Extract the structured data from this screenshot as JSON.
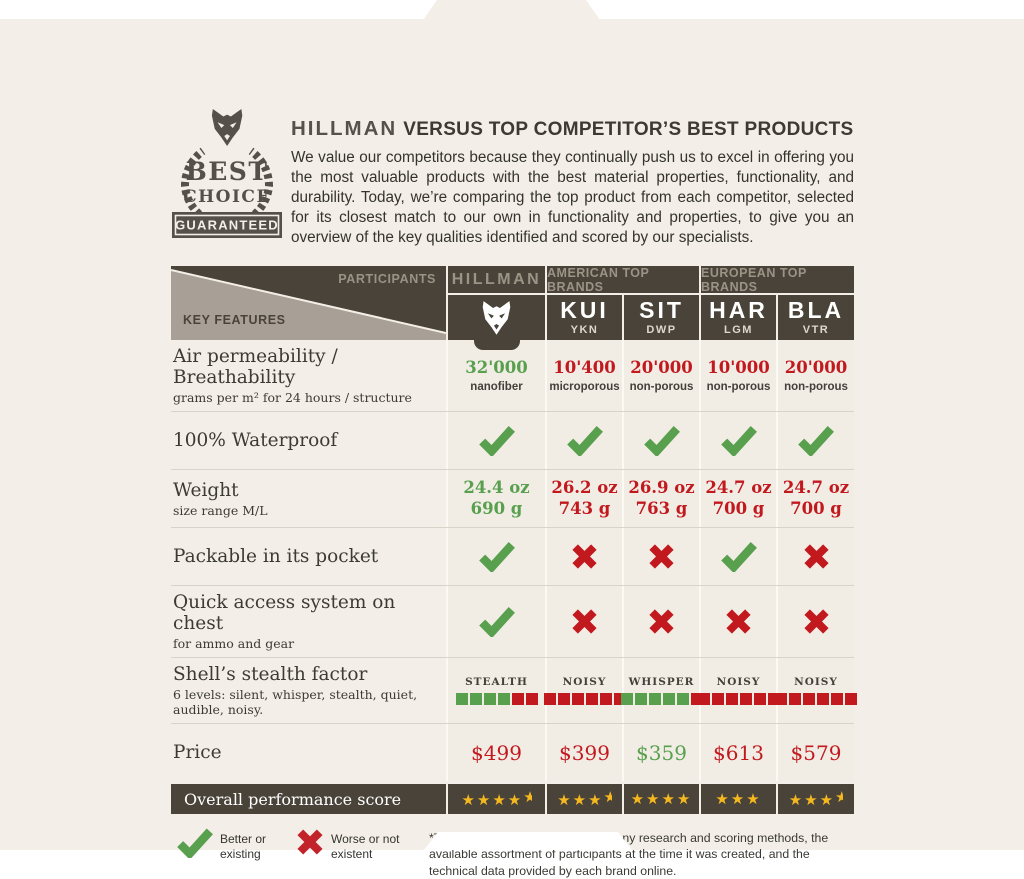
{
  "header": {
    "title_brand": "HILLMAN",
    "title_rest": "VERSUS TOP COMPETITOR’S BEST PRODUCTS",
    "intro": "We value our competitors because they continually push us to excel in offering you the most valuable products with the best material properties, functionality, and durability. Today, we’re comparing the top product from each competitor, selected for its closest match to our own in functionality and properties, to give you an overview of the key qualities identified and scored by our specialists."
  },
  "badge": {
    "line1": "BEST",
    "line2": "CHOICE",
    "ribbon": "GUARANTEED"
  },
  "table": {
    "corner": {
      "top_label": "PARTICIPANTS",
      "bottom_label": "KEY FEATURES"
    },
    "hillman_label": "HILLMAN",
    "groups": [
      {
        "label": "AMERICAN TOP BRANDS"
      },
      {
        "label": "EUROPEAN TOP BRANDS"
      }
    ],
    "brands": [
      {
        "name": "KUI",
        "sub": "YKN"
      },
      {
        "name": "SIT",
        "sub": "DWP"
      },
      {
        "name": "HAR",
        "sub": "LGM"
      },
      {
        "name": "BLA",
        "sub": "VTR"
      }
    ],
    "rows": [
      {
        "feature": "Air permeability / Breathability",
        "sub": "grams per m² for 24 hours / structure",
        "type": "text",
        "values": [
          {
            "v": "32'000",
            "sub": "nanofiber",
            "tone": "good"
          },
          {
            "v": "10'400",
            "sub": "microporous",
            "tone": "bad"
          },
          {
            "v": "20'000",
            "sub": "non-porous",
            "tone": "bad"
          },
          {
            "v": "10'000",
            "sub": "non-porous",
            "tone": "bad"
          },
          {
            "v": "20'000",
            "sub": "non-porous",
            "tone": "bad"
          }
        ]
      },
      {
        "feature": "100% Waterproof",
        "type": "bool",
        "values": [
          true,
          true,
          true,
          true,
          true
        ]
      },
      {
        "feature": "Weight",
        "sub": "size range M/L",
        "type": "twoline",
        "values": [
          {
            "l1": "24.4 oz",
            "l2": "690 g",
            "tone": "good"
          },
          {
            "l1": "26.2 oz",
            "l2": "743 g",
            "tone": "bad"
          },
          {
            "l1": "26.9 oz",
            "l2": "763 g",
            "tone": "bad"
          },
          {
            "l1": "24.7 oz",
            "l2": "700 g",
            "tone": "bad"
          },
          {
            "l1": "24.7 oz",
            "l2": "700 g",
            "tone": "bad"
          }
        ]
      },
      {
        "feature": "Packable in its pocket",
        "type": "bool",
        "values": [
          true,
          false,
          false,
          true,
          false
        ]
      },
      {
        "feature": "Quick access system on chest",
        "sub": "for ammo and gear",
        "type": "bool",
        "values": [
          true,
          false,
          false,
          false,
          false
        ]
      },
      {
        "feature": "Shell’s stealth factor",
        "sub": "6 levels: silent, whisper, stealth, quiet, audible, noisy.",
        "type": "meter",
        "segments": 6,
        "values": [
          {
            "label": "STEALTH",
            "green": 4
          },
          {
            "label": "NOISY",
            "green": 0
          },
          {
            "label": "WHISPER",
            "green": 5
          },
          {
            "label": "NOISY",
            "green": 0
          },
          {
            "label": "NOISY",
            "green": 0
          }
        ]
      },
      {
        "feature": "Price",
        "type": "price",
        "values": [
          {
            "v": "$499",
            "tone": "bad"
          },
          {
            "v": "$399",
            "tone": "bad"
          },
          {
            "v": "$359",
            "tone": "good"
          },
          {
            "v": "$613",
            "tone": "bad"
          },
          {
            "v": "$579",
            "tone": "bad"
          }
        ]
      }
    ],
    "overall": {
      "label": "Overall performance score",
      "stars": [
        4.5,
        3.5,
        4,
        3,
        3.5
      ]
    }
  },
  "legend": {
    "check_label": "Better or existing",
    "cross_label": "Worse or not existent",
    "disclaimer": "*This chart is based on inter-company research and scoring methods, the available assortment of participants at the time it was created, and the technical data provided by each brand online."
  },
  "colors": {
    "background": "#f3efe8",
    "panel_dark": "#4a4339",
    "panel_light": "#a8a096",
    "good": "#58a04e",
    "bad": "#c2191f",
    "star": "#f5b91f"
  },
  "chart_data": {
    "type": "table",
    "title": "HILLMAN VERSUS TOP COMPETITOR’S BEST PRODUCTS",
    "columns": [
      "KEY FEATURES",
      "HILLMAN",
      "KUI YKN",
      "SIT DWP",
      "HAR LGM",
      "BLA VTR"
    ],
    "rows": [
      [
        "Air permeability / Breathability (grams per m² for 24 hours / structure)",
        "32'000 nanofiber",
        "10'400 microporous",
        "20'000 non-porous",
        "10'000 non-porous",
        "20'000 non-porous"
      ],
      [
        "100% Waterproof",
        "yes",
        "yes",
        "yes",
        "yes",
        "yes"
      ],
      [
        "Weight (size range M/L)",
        "24.4 oz / 690 g",
        "26.2 oz / 743 g",
        "26.9 oz / 763 g",
        "24.7 oz / 700 g",
        "24.7 oz / 700 g"
      ],
      [
        "Packable in its pocket",
        "yes",
        "no",
        "no",
        "yes",
        "no"
      ],
      [
        "Quick access system on chest (for ammo and gear)",
        "yes",
        "no",
        "no",
        "no",
        "no"
      ],
      [
        "Shell’s stealth factor (green segments of 6)",
        "STEALTH 4/6",
        "NOISY 0/6",
        "WHISPER 5/6",
        "NOISY 0/6",
        "NOISY 0/6"
      ],
      [
        "Price",
        "$499",
        "$399",
        "$359",
        "$613",
        "$579"
      ],
      [
        "Overall performance score (stars of 5)",
        4.5,
        3.5,
        4,
        3,
        3.5
      ]
    ]
  }
}
